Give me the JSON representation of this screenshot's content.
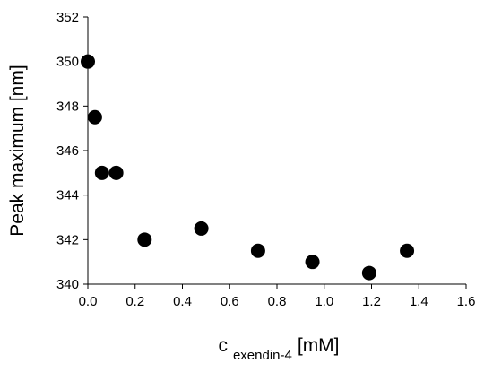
{
  "chart_data": {
    "type": "scatter",
    "title": "",
    "xlabel": {
      "main": "c",
      "subscript": "exendin-4",
      "unit": "[mM]"
    },
    "ylabel": "Peak maximum [nm]",
    "xlim": [
      0.0,
      1.6
    ],
    "ylim": [
      340,
      352
    ],
    "xticks": [
      "0.0",
      "0.2",
      "0.4",
      "0.6",
      "0.8",
      "1.0",
      "1.2",
      "1.4",
      "1.6"
    ],
    "yticks": [
      "340",
      "342",
      "344",
      "346",
      "348",
      "350",
      "352"
    ],
    "grid": false,
    "legend": "none",
    "marker_color": "#000000",
    "series": [
      {
        "points": [
          {
            "x": 0.0,
            "y": 350.0
          },
          {
            "x": 0.03,
            "y": 347.5
          },
          {
            "x": 0.06,
            "y": 345.0
          },
          {
            "x": 0.12,
            "y": 345.0
          },
          {
            "x": 0.24,
            "y": 342.0
          },
          {
            "x": 0.48,
            "y": 342.5
          },
          {
            "x": 0.72,
            "y": 341.5
          },
          {
            "x": 0.95,
            "y": 341.0
          },
          {
            "x": 1.19,
            "y": 340.5
          },
          {
            "x": 1.35,
            "y": 341.5
          }
        ]
      }
    ]
  }
}
